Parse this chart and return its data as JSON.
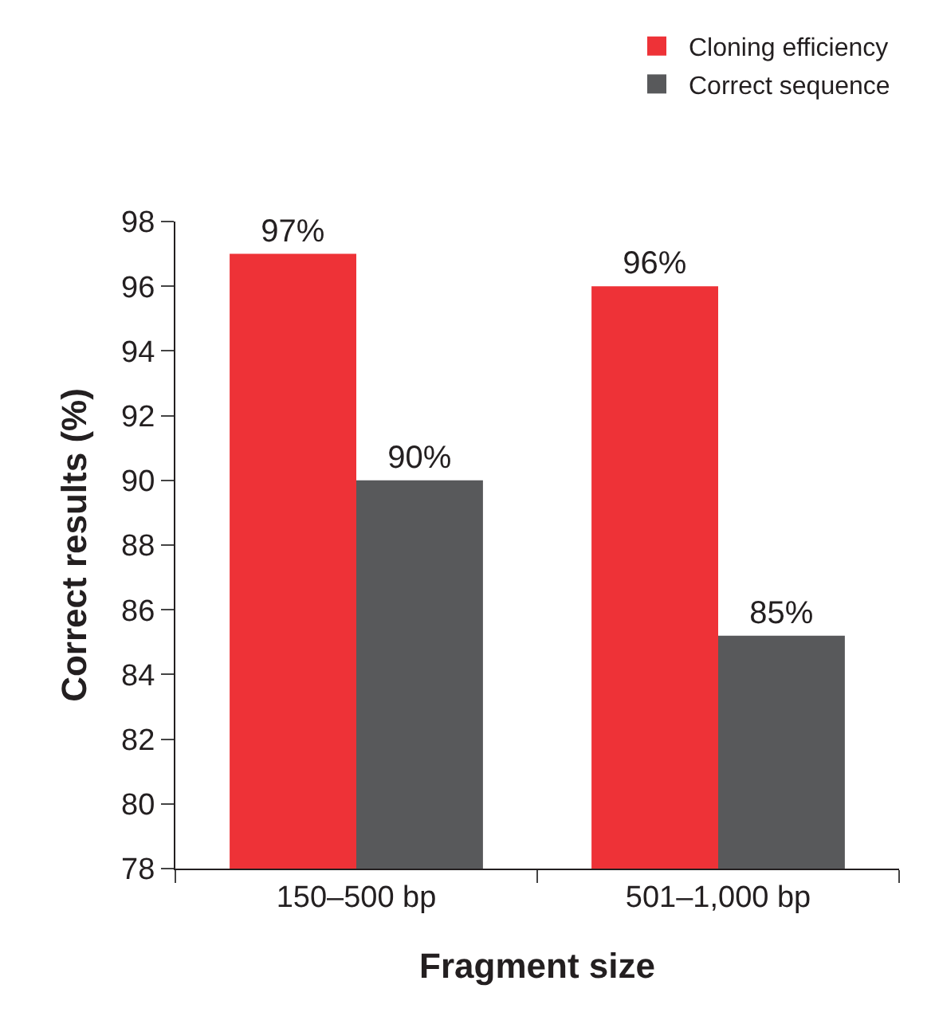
{
  "chart_data": {
    "type": "bar",
    "xlabel": "Fragment size",
    "ylabel": "Correct results (%)",
    "categories": [
      "150–500 bp",
      "501–1,000 bp"
    ],
    "series": [
      {
        "name": "Cloning efficiency",
        "color": "#ee3237",
        "values": [
          97,
          96
        ],
        "value_labels": [
          "97%",
          "96%"
        ]
      },
      {
        "name": "Correct sequence",
        "color": "#58595b",
        "values": [
          90,
          85.2
        ],
        "value_labels": [
          "90%",
          "85%"
        ]
      }
    ],
    "ylim": [
      78,
      98
    ],
    "yticks": [
      78,
      80,
      82,
      84,
      86,
      88,
      90,
      92,
      94,
      96,
      98
    ],
    "legend": "top right"
  }
}
